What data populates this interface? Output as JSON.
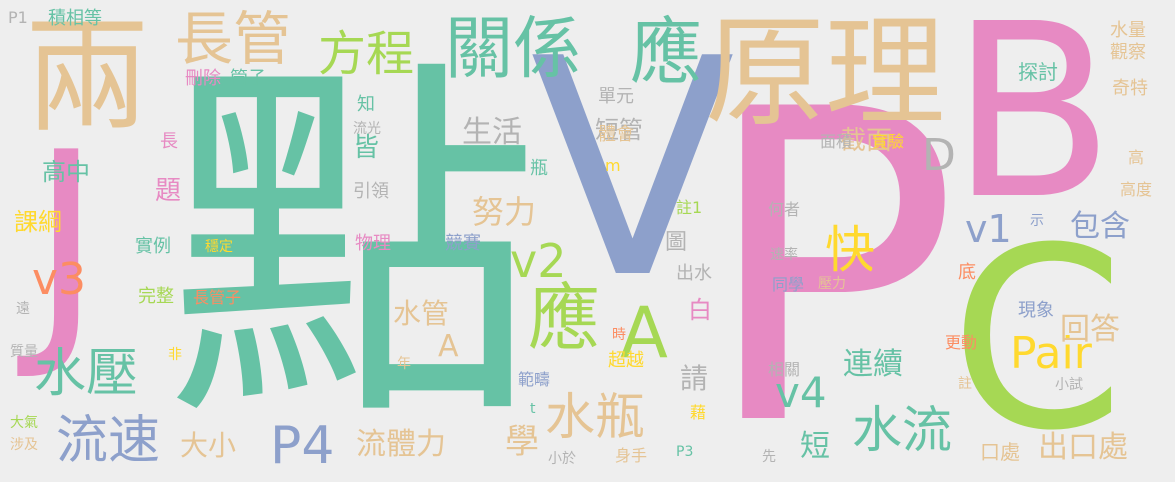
{
  "words": [
    {
      "text": "點"
    },
    {
      "text": "V"
    },
    {
      "text": "P"
    },
    {
      "text": "B"
    },
    {
      "text": "C"
    },
    {
      "text": "J"
    },
    {
      "text": "兩"
    },
    {
      "text": "原理"
    },
    {
      "text": "關係"
    },
    {
      "text": "應"
    },
    {
      "text": "長管"
    },
    {
      "text": "方程"
    },
    {
      "text": "應"
    },
    {
      "text": "A"
    },
    {
      "text": "v2"
    },
    {
      "text": "v3"
    },
    {
      "text": "水壓"
    },
    {
      "text": "流速"
    },
    {
      "text": "P4"
    },
    {
      "text": "水瓶"
    },
    {
      "text": "水流"
    },
    {
      "text": "Pair"
    },
    {
      "text": "v4"
    },
    {
      "text": "快"
    },
    {
      "text": "v1"
    },
    {
      "text": "D"
    },
    {
      "text": "截面"
    },
    {
      "text": "流體力"
    },
    {
      "text": "學"
    },
    {
      "text": "努力"
    },
    {
      "text": "生活"
    },
    {
      "text": "短管"
    },
    {
      "text": "連續"
    },
    {
      "text": "回答"
    },
    {
      "text": "包含"
    },
    {
      "text": "出口處"
    },
    {
      "text": "口處"
    },
    {
      "text": "大小"
    },
    {
      "text": "短"
    },
    {
      "text": "水管"
    },
    {
      "text": "A"
    },
    {
      "text": "白"
    },
    {
      "text": "高中"
    },
    {
      "text": "課綱"
    },
    {
      "text": "題"
    },
    {
      "text": "皆"
    },
    {
      "text": "請"
    },
    {
      "text": "圖"
    },
    {
      "text": "出水"
    },
    {
      "text": "單元"
    },
    {
      "text": "體會"
    },
    {
      "text": "探討"
    },
    {
      "text": "水量"
    },
    {
      "text": "觀察"
    },
    {
      "text": "奇特"
    },
    {
      "text": "積相等"
    },
    {
      "text": "P1"
    },
    {
      "text": "刪除"
    },
    {
      "text": "管子"
    },
    {
      "text": "知"
    },
    {
      "text": "流光"
    },
    {
      "text": "引領"
    },
    {
      "text": "長"
    },
    {
      "text": "瓶"
    },
    {
      "text": "m"
    },
    {
      "text": "面積"
    },
    {
      "text": "實驗"
    },
    {
      "text": "高"
    },
    {
      "text": "高度"
    },
    {
      "text": "註1"
    },
    {
      "text": "何者"
    },
    {
      "text": "示"
    },
    {
      "text": "實例"
    },
    {
      "text": "穩定"
    },
    {
      "text": "物理"
    },
    {
      "text": "競賽"
    },
    {
      "text": "速率"
    },
    {
      "text": "截"
    },
    {
      "text": "底"
    },
    {
      "text": "完整"
    },
    {
      "text": "長管子"
    },
    {
      "text": "同學"
    },
    {
      "text": "壓力"
    },
    {
      "text": "遠"
    },
    {
      "text": "現象"
    },
    {
      "text": "時"
    },
    {
      "text": "更動"
    },
    {
      "text": "質量"
    },
    {
      "text": "非"
    },
    {
      "text": "年"
    },
    {
      "text": "超越"
    },
    {
      "text": "相關"
    },
    {
      "text": "範疇"
    },
    {
      "text": "小試"
    },
    {
      "text": "註"
    },
    {
      "text": "t"
    },
    {
      "text": "大氣"
    },
    {
      "text": "涉及"
    },
    {
      "text": "藉"
    },
    {
      "text": "小於"
    },
    {
      "text": "身手"
    },
    {
      "text": "P3"
    },
    {
      "text": "先"
    }
  ]
}
